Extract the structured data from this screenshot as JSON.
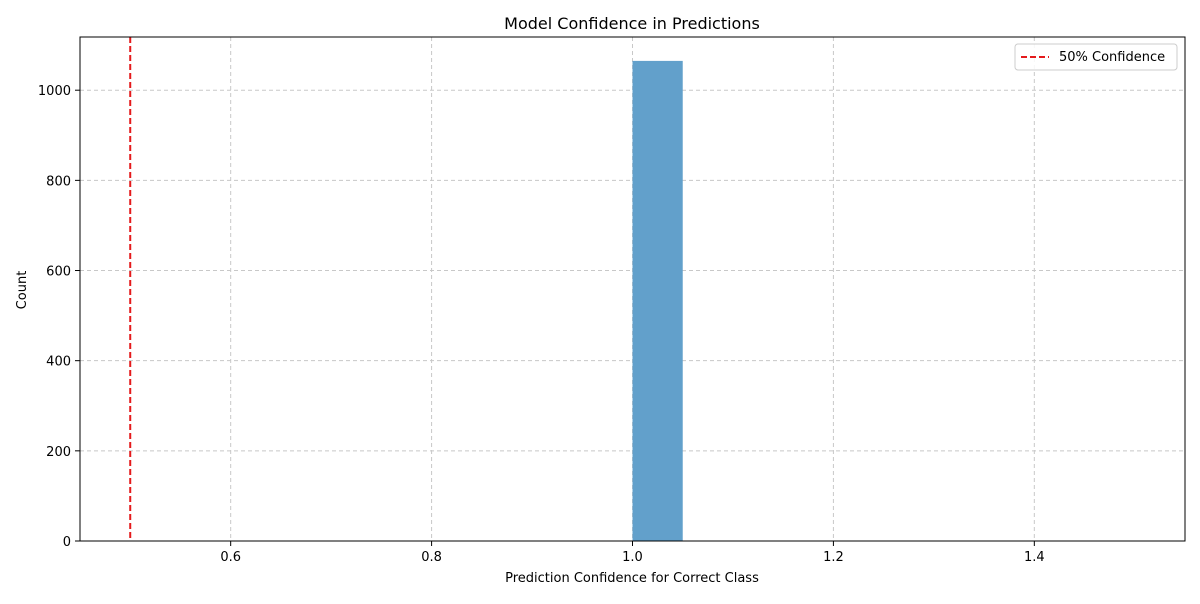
{
  "chart_data": {
    "type": "bar",
    "title": "Model Confidence in Predictions",
    "xlabel": "Prediction Confidence for Correct Class",
    "ylabel": "Count",
    "xlim": [
      0.45,
      1.55
    ],
    "ylim": [
      0,
      1118
    ],
    "x_ticks": [
      0.6,
      0.8,
      1.0,
      1.2,
      1.4
    ],
    "x_tick_labels": [
      "0.6",
      "0.8",
      "1.0",
      "1.2",
      "1.4"
    ],
    "y_ticks": [
      0,
      200,
      400,
      600,
      800,
      1000
    ],
    "y_tick_labels": [
      "0",
      "200",
      "400",
      "600",
      "800",
      "1000"
    ],
    "grid": true,
    "bins": [
      {
        "x_start": 1.0,
        "x_end": 1.05,
        "count": 1065
      }
    ],
    "bar_color": "#62a0cb",
    "reference_lines": [
      {
        "x": 0.5,
        "label": "50% Confidence",
        "color": "#e41a1c",
        "style": "dashed"
      }
    ],
    "legend": {
      "position": "top-right",
      "entries": [
        "50% Confidence"
      ]
    }
  }
}
